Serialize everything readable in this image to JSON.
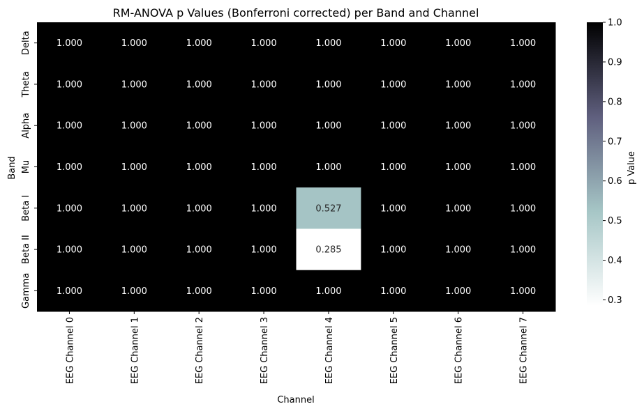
{
  "chart_data": {
    "type": "heatmap",
    "title": "RM-ANOVA p Values (Bonferroni corrected) per Band and Channel",
    "xlabel": "Channel",
    "ylabel": "Band",
    "x_categories": [
      "EEG Channel 0",
      "EEG Channel 1",
      "EEG Channel 2",
      "EEG Channel 3",
      "EEG Channel 4",
      "EEG Channel 5",
      "EEG Channel 6",
      "EEG Channel 7"
    ],
    "y_categories": [
      "Delta",
      "Theta",
      "Alpha",
      "Mu",
      "Beta I",
      "Beta II",
      "Gamma"
    ],
    "values": [
      [
        1.0,
        1.0,
        1.0,
        1.0,
        1.0,
        1.0,
        1.0,
        1.0
      ],
      [
        1.0,
        1.0,
        1.0,
        1.0,
        1.0,
        1.0,
        1.0,
        1.0
      ],
      [
        1.0,
        1.0,
        1.0,
        1.0,
        1.0,
        1.0,
        1.0,
        1.0
      ],
      [
        1.0,
        1.0,
        1.0,
        1.0,
        1.0,
        1.0,
        1.0,
        1.0
      ],
      [
        1.0,
        1.0,
        1.0,
        1.0,
        0.527,
        1.0,
        1.0,
        1.0
      ],
      [
        1.0,
        1.0,
        1.0,
        1.0,
        0.285,
        1.0,
        1.0,
        1.0
      ],
      [
        1.0,
        1.0,
        1.0,
        1.0,
        1.0,
        1.0,
        1.0,
        1.0
      ]
    ],
    "annotation_format": "0.000",
    "colorbar": {
      "label": "p Value",
      "vmin": 0.285,
      "vmax": 1.0,
      "ticks": [
        0.3,
        0.4,
        0.5,
        0.6,
        0.7,
        0.8,
        0.9,
        1.0
      ],
      "tick_labels": [
        "0.3",
        "0.4",
        "0.5",
        "0.6",
        "0.7",
        "0.8",
        "0.9",
        "1.0"
      ],
      "colormap": "bone_r",
      "color_stops": [
        "#ffffff",
        "#a6c6c6",
        "#5f5f7e",
        "#000000"
      ]
    }
  }
}
